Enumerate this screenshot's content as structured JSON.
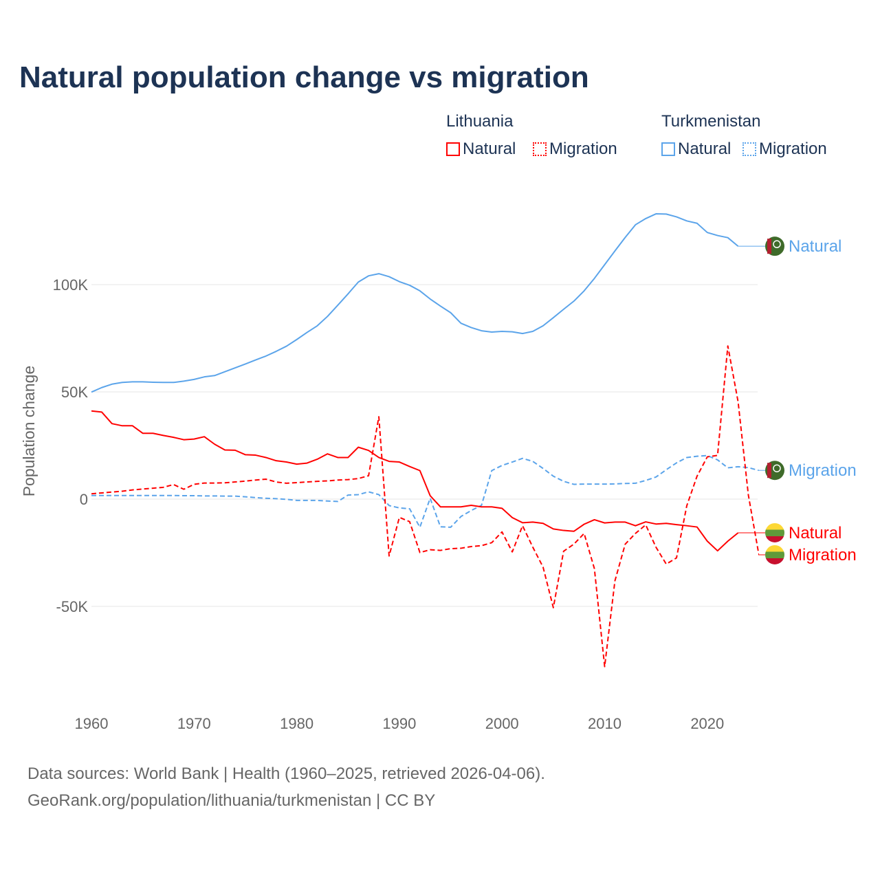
{
  "title": "Natural population change vs migration",
  "legend": [
    {
      "group": "Lithuania",
      "items": [
        {
          "label": "Natural",
          "style": "solid"
        },
        {
          "label": "Migration",
          "style": "dotted"
        }
      ],
      "color": "#ff0000"
    },
    {
      "group": "Turkmenistan",
      "items": [
        {
          "label": "Natural",
          "style": "solid"
        },
        {
          "label": "Migration",
          "style": "dotted"
        }
      ],
      "color": "#5ba4ea"
    }
  ],
  "footer": {
    "line1": "Data sources: World Bank | Health (1960–2025, retrieved 2026-04-06).",
    "line2": "GeoRank.org/population/lithuania/turkmenistan | CC BY"
  },
  "chart_data": {
    "type": "line",
    "title": "Natural population change vs migration",
    "xlabel": "",
    "ylabel": "Population change",
    "xlim": [
      1960,
      2025
    ],
    "ylim": [
      -90000,
      145000
    ],
    "x_ticks": [
      1960,
      1970,
      1980,
      1990,
      2000,
      2010,
      2020
    ],
    "x_tick_labels": [
      "1960",
      "1970",
      "1980",
      "1990",
      "2000",
      "2010",
      "2020"
    ],
    "y_ticks": [
      -50000,
      0,
      50000,
      100000
    ],
    "y_tick_labels": [
      "-50K",
      "0",
      "50K",
      "100K"
    ],
    "grid": true,
    "legend_position": "top-right",
    "series": [
      {
        "name": "Turkmenistan Natural",
        "end_label": "Natural",
        "country": "Turkmenistan",
        "color": "#5ba4ea",
        "dashed": false,
        "start": 1960,
        "values": [
          49.9,
          52,
          53.6,
          54.4,
          54.7,
          54.7,
          54.5,
          54.4,
          54.4,
          55,
          55.8,
          57,
          57.6,
          59.4,
          61.2,
          63,
          64.9,
          66.7,
          68.9,
          71.3,
          74.4,
          77.7,
          80.8,
          85.2,
          90.4,
          95.7,
          101.2,
          104.1,
          105.1,
          103.7,
          101.4,
          99.7,
          97.1,
          93.3,
          90,
          86.9,
          82,
          80,
          78.5,
          77.9,
          78.2,
          78,
          77.2,
          78.2,
          80.8,
          84.6,
          88.5,
          92.3,
          97.1,
          102.9,
          109.3,
          115.7,
          122,
          127.9,
          130.8,
          133,
          132.9,
          131.6,
          129.7,
          128.6,
          124.3,
          122.9,
          121.9,
          117.9
        ]
      },
      {
        "name": "Turkmenistan Migration",
        "end_label": "Migration",
        "country": "Turkmenistan",
        "color": "#5ba4ea",
        "dashed": true,
        "start": 1960,
        "values": [
          1.7,
          1.7,
          1.7,
          1.7,
          1.7,
          1.7,
          1.7,
          1.7,
          1.7,
          1.6,
          1.6,
          1.5,
          1.5,
          1.4,
          1.4,
          1.1,
          0.7,
          0.4,
          0.2,
          -0.1,
          -0.6,
          -0.6,
          -0.6,
          -0.9,
          -1.1,
          1.9,
          2.1,
          3.4,
          2.1,
          -3,
          -4.1,
          -4.5,
          -13.1,
          0.4,
          -12.9,
          -13.1,
          -8.1,
          -5.3,
          -2.9,
          13.3,
          15.7,
          17.3,
          19,
          17.6,
          14.3,
          10.7,
          8.3,
          6.9,
          7,
          7,
          7,
          7.1,
          7.3,
          7.4,
          8.7,
          10.3,
          13.7,
          16.9,
          19.4,
          20,
          20.3,
          18.3,
          14.6,
          15.1,
          14.7,
          13.4
        ]
      },
      {
        "name": "Lithuania Natural",
        "end_label": "Natural",
        "country": "Lithuania",
        "color": "#ff0000",
        "dashed": false,
        "start": 1960,
        "values": [
          41.1,
          40.6,
          35.2,
          34.2,
          34.2,
          30.7,
          30.7,
          29.7,
          28.8,
          27.7,
          28,
          29.1,
          25.6,
          22.9,
          22.8,
          20.7,
          20.5,
          19.4,
          17.9,
          17.3,
          16.3,
          16.8,
          18.6,
          21.1,
          19.4,
          19.4,
          24.2,
          22.7,
          19.4,
          17.6,
          17.3,
          15.2,
          13.3,
          1.6,
          -3.6,
          -3.6,
          -3.6,
          -2.9,
          -3.6,
          -3.6,
          -4.3,
          -8.6,
          -11,
          -10.7,
          -11.3,
          -13.9,
          -14.6,
          -15,
          -11.7,
          -9.6,
          -11.1,
          -10.7,
          -10.7,
          -12.4,
          -10.6,
          -11.6,
          -11.3,
          -11.9,
          -12.4,
          -13,
          -19.6,
          -24.1,
          -19.6,
          -15.7
        ]
      },
      {
        "name": "Lithuania Migration",
        "end_label": "Migration",
        "country": "Lithuania",
        "color": "#ff0000",
        "dashed": true,
        "start": 1960,
        "values": [
          2.5,
          2.9,
          3.3,
          3.7,
          4.3,
          4.7,
          5.1,
          5.5,
          6.8,
          4.6,
          6.9,
          7.5,
          7.5,
          7.6,
          8,
          8.4,
          8.9,
          9.3,
          8,
          7.4,
          7.7,
          8,
          8.3,
          8.5,
          8.9,
          9.1,
          9.6,
          10.9,
          38.4,
          -26.5,
          -8.5,
          -10.5,
          -24.9,
          -23.6,
          -23.9,
          -23.1,
          -22.9,
          -22.1,
          -21.7,
          -20.3,
          -15.3,
          -24.6,
          -12.4,
          -22.4,
          -31.7,
          -50.6,
          -24.3,
          -21,
          -16,
          -32.4,
          -78.1,
          -38.1,
          -21,
          -16,
          -12,
          -22.4,
          -30.3,
          -27.4,
          -3.1,
          10.7,
          19.7,
          20.4,
          71.4,
          45.4,
          1.9,
          -25.3
        ]
      }
    ],
    "value_unit": "thousands"
  }
}
